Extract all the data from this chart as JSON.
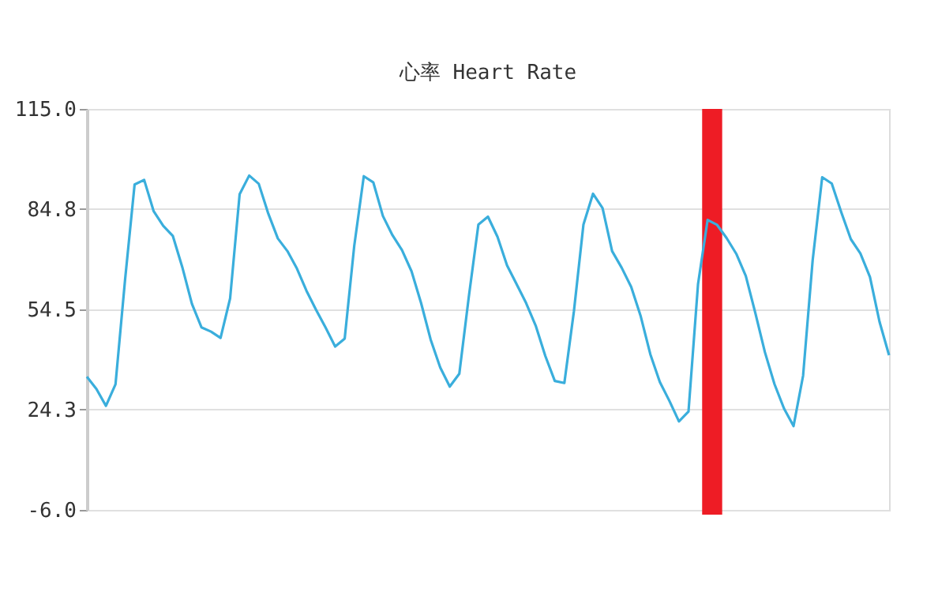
{
  "chart_data": {
    "type": "line",
    "title": "心率 Heart Rate",
    "categories": [
      null,
      null,
      null,
      null,
      null,
      null,
      null,
      null,
      null,
      null,
      null,
      null,
      null,
      null,
      null,
      null,
      null,
      null,
      null,
      null,
      null,
      null,
      null,
      null,
      null,
      null,
      null,
      null,
      null,
      null,
      null,
      null,
      null,
      null,
      null,
      null,
      null,
      null,
      null,
      null,
      null,
      null,
      null,
      null,
      null,
      null,
      null,
      null,
      null,
      null,
      null,
      null,
      null,
      null,
      null,
      null,
      null,
      null,
      null,
      null,
      null,
      null,
      null,
      null,
      null,
      null,
      null,
      null,
      null,
      null,
      null,
      null,
      null,
      null,
      null,
      null,
      null,
      null,
      null,
      null,
      null,
      null,
      null,
      null,
      null
    ],
    "series": [
      {
        "color": "#3aaedc",
        "values": [
          34.2,
          30.5,
          25.4,
          31.9,
          63.4,
          92.2,
          93.6,
          84.1,
          79.7,
          76.7,
          67.2,
          56.2,
          49.1,
          47.8,
          45.9,
          57.8,
          89.3,
          94.9,
          92.4,
          83.4,
          75.9,
          72.1,
          66.8,
          60.1,
          54.4,
          49.0,
          43.3,
          45.7,
          73.7,
          94.7,
          92.8,
          82.7,
          76.9,
          72.4,
          66.0,
          56.4,
          45.4,
          37.0,
          31.2,
          35.1,
          58.4,
          80.1,
          82.5,
          76.4,
          67.8,
          62.1,
          56.4,
          49.6,
          40.5,
          32.9,
          32.3,
          53.9,
          80.1,
          89.4,
          85.1,
          72.1,
          67.1,
          61.3,
          52.4,
          41.0,
          32.6,
          26.9,
          20.7,
          23.7,
          62.2,
          81.5,
          80.0,
          76.0,
          71.3,
          64.6,
          53.4,
          41.6,
          32.0,
          24.6,
          19.3,
          34.5,
          69.3,
          94.4,
          92.5,
          83.8,
          75.7,
          71.4,
          64.3,
          50.8,
          40.7
        ]
      }
    ],
    "ylim": [
      -6,
      115
    ],
    "yticks": [
      {
        "value": 115,
        "label": "115.0"
      },
      84.8,
      54.5,
      24.3,
      {
        "value": -6,
        "label": "-6.0"
      }
    ],
    "tick_labels": "y",
    "grid": "y",
    "marker": "none",
    "line_style": "solid"
  }
}
